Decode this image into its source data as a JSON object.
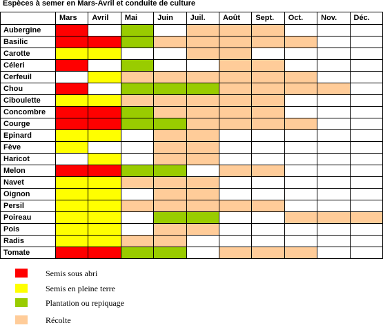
{
  "chart_data": {
    "type": "table",
    "title": "Espèces à semer en Mars-Avril et conduite de culture",
    "grid": true,
    "legend_position": "bottom-left",
    "columns": [
      "Mars",
      "Avril",
      "Mai",
      "Juin",
      "Juil.",
      "Août",
      "Sept.",
      "Oct.",
      "Nov.",
      "Déc."
    ],
    "legend": [
      {
        "label": "Semis sous abri",
        "color": "#FF0000"
      },
      {
        "label": "Semis en pleine terre",
        "color": "#FFFF00"
      },
      {
        "label": "Plantation ou repiquage",
        "color": "#99CC00"
      },
      {
        "label": "Récolte",
        "color": "#FFCC99"
      }
    ],
    "rows": [
      {
        "label": "Aubergine",
        "cells": [
          0,
          null,
          2,
          null,
          3,
          3,
          3,
          null,
          null,
          null
        ]
      },
      {
        "label": "Basilic",
        "cells": [
          0,
          0,
          2,
          3,
          3,
          3,
          3,
          3,
          null,
          null
        ]
      },
      {
        "label": "Carotte",
        "cells": [
          1,
          1,
          null,
          null,
          3,
          3,
          null,
          null,
          null,
          null
        ]
      },
      {
        "label": "Céleri",
        "cells": [
          0,
          null,
          2,
          null,
          null,
          3,
          3,
          null,
          null,
          null
        ]
      },
      {
        "label": "Cerfeuil",
        "cells": [
          null,
          1,
          3,
          3,
          3,
          3,
          3,
          3,
          null,
          null
        ]
      },
      {
        "label": "Chou",
        "cells": [
          0,
          null,
          2,
          2,
          2,
          3,
          3,
          3,
          3,
          null
        ]
      },
      {
        "label": "Ciboulette",
        "cells": [
          1,
          1,
          3,
          3,
          3,
          3,
          3,
          null,
          null,
          null
        ]
      },
      {
        "label": "Concombre",
        "cells": [
          0,
          0,
          2,
          3,
          3,
          3,
          3,
          null,
          null,
          null
        ]
      },
      {
        "label": "Courge",
        "cells": [
          0,
          0,
          2,
          2,
          3,
          3,
          3,
          3,
          null,
          null
        ]
      },
      {
        "label": "Epinard",
        "cells": [
          1,
          1,
          null,
          3,
          3,
          null,
          null,
          null,
          null,
          null
        ]
      },
      {
        "label": "Fève",
        "cells": [
          1,
          null,
          null,
          3,
          3,
          null,
          null,
          null,
          null,
          null
        ]
      },
      {
        "label": "Haricot",
        "cells": [
          null,
          1,
          null,
          3,
          3,
          null,
          null,
          null,
          null,
          null
        ]
      },
      {
        "label": "Melon",
        "cells": [
          0,
          0,
          2,
          2,
          null,
          3,
          3,
          null,
          null,
          null
        ]
      },
      {
        "label": "Navet",
        "cells": [
          1,
          1,
          3,
          3,
          3,
          null,
          null,
          null,
          null,
          null
        ]
      },
      {
        "label": "Oignon",
        "cells": [
          1,
          1,
          null,
          3,
          3,
          null,
          null,
          null,
          null,
          null
        ]
      },
      {
        "label": "Persil",
        "cells": [
          1,
          1,
          3,
          3,
          3,
          3,
          3,
          null,
          null,
          null
        ]
      },
      {
        "label": "Poireau",
        "cells": [
          1,
          1,
          null,
          2,
          2,
          null,
          null,
          3,
          3,
          3
        ]
      },
      {
        "label": "Pois",
        "cells": [
          1,
          1,
          null,
          3,
          3,
          null,
          null,
          null,
          null,
          null
        ]
      },
      {
        "label": "Radis",
        "cells": [
          1,
          1,
          3,
          3,
          null,
          null,
          null,
          null,
          null,
          null
        ]
      },
      {
        "label": "Tomate",
        "cells": [
          0,
          0,
          2,
          2,
          null,
          3,
          3,
          3,
          null,
          null
        ]
      }
    ]
  }
}
